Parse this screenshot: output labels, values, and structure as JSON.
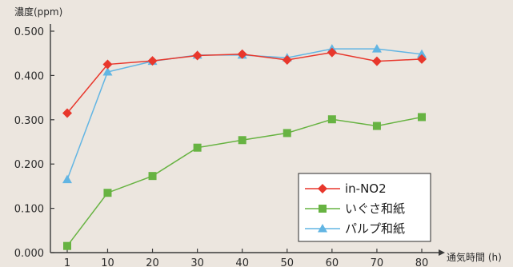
{
  "chart_data": {
    "type": "line",
    "ylabel": "濃度(ppm)",
    "xlabel": "通気時間 (h)",
    "categories": [
      "1",
      "10",
      "20",
      "30",
      "40",
      "50",
      "60",
      "70",
      "80"
    ],
    "x": [
      1,
      10,
      20,
      30,
      40,
      50,
      60,
      70,
      80
    ],
    "ylim": [
      0,
      0.5
    ],
    "yticks": [
      "0.000",
      "0.100",
      "0.200",
      "0.300",
      "0.400",
      "0.500"
    ],
    "grid": false,
    "legend_position": "bottom-right",
    "series": [
      {
        "name": "in-NO2",
        "color": "#e8372c",
        "marker": "diamond",
        "values": [
          0.315,
          0.425,
          0.433,
          0.445,
          0.448,
          0.435,
          0.452,
          0.432,
          0.437
        ]
      },
      {
        "name": "いぐさ和紙",
        "color": "#67b342",
        "marker": "square",
        "values": [
          0.015,
          0.135,
          0.173,
          0.237,
          0.254,
          0.27,
          0.301,
          0.286,
          0.306
        ]
      },
      {
        "name": "パルプ和紙",
        "color": "#62b5e3",
        "marker": "triangle",
        "values": [
          0.165,
          0.408,
          0.432,
          0.446,
          0.446,
          0.44,
          0.46,
          0.46,
          0.448
        ]
      }
    ]
  }
}
